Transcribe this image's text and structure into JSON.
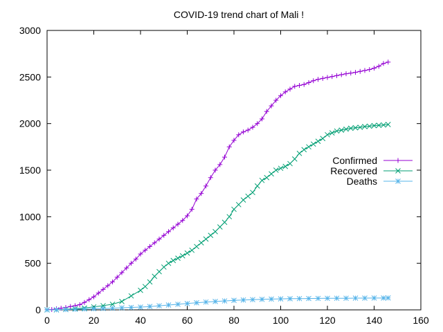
{
  "chart_data": {
    "type": "line",
    "title": "COVID-19 trend chart of Mali !",
    "xlabel": "",
    "ylabel": "",
    "xlim": [
      0,
      160
    ],
    "ylim": [
      0,
      3000
    ],
    "xticks": [
      0,
      20,
      40,
      60,
      80,
      100,
      120,
      140,
      160
    ],
    "yticks": [
      0,
      500,
      1000,
      1500,
      2000,
      2500,
      3000
    ],
    "grid": false,
    "legend_position": "right",
    "series": [
      {
        "name": "Confirmed",
        "color": "#9400d3",
        "marker": "plus",
        "points": [
          [
            0,
            2
          ],
          [
            2,
            4
          ],
          [
            4,
            11
          ],
          [
            6,
            18
          ],
          [
            8,
            25
          ],
          [
            10,
            36
          ],
          [
            12,
            45
          ],
          [
            14,
            56
          ],
          [
            16,
            80
          ],
          [
            18,
            110
          ],
          [
            20,
            140
          ],
          [
            22,
            180
          ],
          [
            24,
            220
          ],
          [
            26,
            260
          ],
          [
            28,
            300
          ],
          [
            30,
            350
          ],
          [
            32,
            400
          ],
          [
            34,
            450
          ],
          [
            36,
            500
          ],
          [
            38,
            545
          ],
          [
            40,
            600
          ],
          [
            42,
            640
          ],
          [
            44,
            680
          ],
          [
            46,
            720
          ],
          [
            48,
            760
          ],
          [
            50,
            800
          ],
          [
            52,
            840
          ],
          [
            54,
            880
          ],
          [
            56,
            920
          ],
          [
            58,
            960
          ],
          [
            60,
            1010
          ],
          [
            62,
            1080
          ],
          [
            64,
            1190
          ],
          [
            66,
            1250
          ],
          [
            68,
            1330
          ],
          [
            70,
            1420
          ],
          [
            72,
            1500
          ],
          [
            74,
            1560
          ],
          [
            76,
            1640
          ],
          [
            78,
            1750
          ],
          [
            80,
            1820
          ],
          [
            82,
            1880
          ],
          [
            84,
            1910
          ],
          [
            86,
            1930
          ],
          [
            88,
            1960
          ],
          [
            90,
            2000
          ],
          [
            92,
            2050
          ],
          [
            94,
            2130
          ],
          [
            96,
            2190
          ],
          [
            98,
            2250
          ],
          [
            100,
            2300
          ],
          [
            102,
            2340
          ],
          [
            104,
            2370
          ],
          [
            106,
            2400
          ],
          [
            108,
            2410
          ],
          [
            110,
            2420
          ],
          [
            112,
            2440
          ],
          [
            114,
            2460
          ],
          [
            116,
            2475
          ],
          [
            118,
            2485
          ],
          [
            120,
            2495
          ],
          [
            122,
            2505
          ],
          [
            124,
            2515
          ],
          [
            126,
            2525
          ],
          [
            128,
            2535
          ],
          [
            130,
            2542
          ],
          [
            132,
            2550
          ],
          [
            134,
            2560
          ],
          [
            136,
            2570
          ],
          [
            138,
            2580
          ],
          [
            140,
            2595
          ],
          [
            142,
            2615
          ],
          [
            144,
            2645
          ],
          [
            146,
            2660
          ]
        ]
      },
      {
        "name": "Recovered",
        "color": "#009e73",
        "marker": "cross",
        "points": [
          [
            0,
            0
          ],
          [
            4,
            0
          ],
          [
            8,
            5
          ],
          [
            12,
            12
          ],
          [
            16,
            20
          ],
          [
            20,
            32
          ],
          [
            24,
            45
          ],
          [
            28,
            60
          ],
          [
            32,
            90
          ],
          [
            36,
            150
          ],
          [
            40,
            210
          ],
          [
            42,
            250
          ],
          [
            44,
            300
          ],
          [
            46,
            360
          ],
          [
            48,
            410
          ],
          [
            50,
            460
          ],
          [
            52,
            500
          ],
          [
            54,
            530
          ],
          [
            56,
            555
          ],
          [
            58,
            580
          ],
          [
            60,
            610
          ],
          [
            62,
            640
          ],
          [
            64,
            680
          ],
          [
            66,
            720
          ],
          [
            68,
            760
          ],
          [
            70,
            800
          ],
          [
            72,
            840
          ],
          [
            74,
            890
          ],
          [
            76,
            940
          ],
          [
            78,
            1000
          ],
          [
            80,
            1080
          ],
          [
            82,
            1130
          ],
          [
            84,
            1180
          ],
          [
            86,
            1220
          ],
          [
            88,
            1260
          ],
          [
            90,
            1330
          ],
          [
            92,
            1390
          ],
          [
            94,
            1420
          ],
          [
            96,
            1460
          ],
          [
            98,
            1500
          ],
          [
            100,
            1520
          ],
          [
            102,
            1540
          ],
          [
            104,
            1570
          ],
          [
            106,
            1620
          ],
          [
            108,
            1680
          ],
          [
            110,
            1720
          ],
          [
            112,
            1750
          ],
          [
            114,
            1780
          ],
          [
            116,
            1810
          ],
          [
            118,
            1840
          ],
          [
            120,
            1880
          ],
          [
            122,
            1900
          ],
          [
            124,
            1920
          ],
          [
            126,
            1930
          ],
          [
            128,
            1940
          ],
          [
            130,
            1950
          ],
          [
            132,
            1955
          ],
          [
            134,
            1960
          ],
          [
            136,
            1968
          ],
          [
            138,
            1972
          ],
          [
            140,
            1978
          ],
          [
            142,
            1982
          ],
          [
            144,
            1985
          ],
          [
            146,
            1990
          ]
        ]
      },
      {
        "name": "Deaths",
        "color": "#56b4e9",
        "marker": "star",
        "points": [
          [
            0,
            0
          ],
          [
            4,
            1
          ],
          [
            8,
            3
          ],
          [
            12,
            6
          ],
          [
            16,
            9
          ],
          [
            20,
            12
          ],
          [
            24,
            15
          ],
          [
            28,
            18
          ],
          [
            32,
            22
          ],
          [
            36,
            26
          ],
          [
            40,
            30
          ],
          [
            44,
            36
          ],
          [
            48,
            44
          ],
          [
            52,
            52
          ],
          [
            56,
            60
          ],
          [
            60,
            68
          ],
          [
            64,
            76
          ],
          [
            68,
            84
          ],
          [
            72,
            90
          ],
          [
            76,
            96
          ],
          [
            80,
            102
          ],
          [
            84,
            106
          ],
          [
            88,
            110
          ],
          [
            92,
            113
          ],
          [
            96,
            116
          ],
          [
            100,
            118
          ],
          [
            104,
            120
          ],
          [
            108,
            121
          ],
          [
            112,
            122
          ],
          [
            116,
            123
          ],
          [
            120,
            124
          ],
          [
            124,
            125
          ],
          [
            128,
            125
          ],
          [
            132,
            126
          ],
          [
            136,
            126
          ],
          [
            140,
            127
          ],
          [
            144,
            127
          ],
          [
            146,
            128
          ]
        ]
      }
    ]
  }
}
